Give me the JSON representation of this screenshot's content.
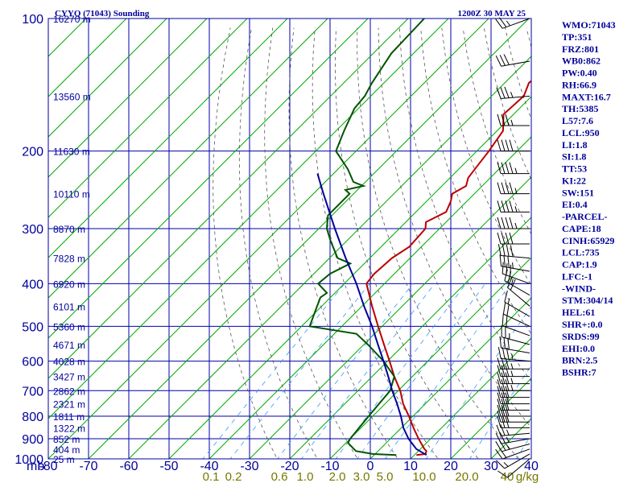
{
  "header": {
    "station": "CYYQ (71043) Sounding",
    "time": "1200Z 30 MAY 25"
  },
  "chart_data": {
    "type": "line",
    "title": "CYYQ (71043) Sounding",
    "subtitle": "1200Z 30 MAY 25",
    "xlabel": "",
    "ylabel": "mb",
    "xlim": [
      -80,
      40
    ],
    "ylim": [
      1000,
      100
    ],
    "y_scale": "log",
    "temperature_ticks": [
      -80,
      -70,
      -60,
      -50,
      -40,
      -30,
      -20,
      -10,
      0,
      10,
      20,
      30,
      40
    ],
    "pressure_ticks": [
      100,
      200,
      300,
      400,
      500,
      600,
      700,
      800,
      900,
      1000
    ],
    "height_labels": [
      {
        "p": 100,
        "text": "16270 m"
      },
      {
        "p": 150,
        "text": "13560 m"
      },
      {
        "p": 200,
        "text": "11630 m"
      },
      {
        "p": 250,
        "text": "10110 m"
      },
      {
        "p": 300,
        "text": "8870 m"
      },
      {
        "p": 350,
        "text": "7828 m"
      },
      {
        "p": 400,
        "text": "6920 m"
      },
      {
        "p": 450,
        "text": "6101 m"
      },
      {
        "p": 500,
        "text": "5360 m"
      },
      {
        "p": 550,
        "text": "4671 m"
      },
      {
        "p": 600,
        "text": "4028 m"
      },
      {
        "p": 650,
        "text": "3427 m"
      },
      {
        "p": 700,
        "text": "2862 m"
      },
      {
        "p": 750,
        "text": "2321 m"
      },
      {
        "p": 800,
        "text": "1811 m"
      },
      {
        "p": 850,
        "text": "1322 m"
      },
      {
        "p": 900,
        "text": "852 m"
      },
      {
        "p": 950,
        "text": "404 m"
      },
      {
        "p": 1000,
        "text": "25 m"
      }
    ],
    "mixing_ratio_labels": [
      "0.1",
      "0.2",
      "0.6",
      "1.0",
      "2.0",
      "3.0",
      "5.0",
      "10.0",
      "20.0",
      "40",
      "g/kg"
    ],
    "mixing_ratio_values": [
      0.1,
      0.2,
      0.6,
      1.0,
      2.0,
      3.0,
      5.0,
      10.0,
      20.0,
      40
    ],
    "series": [
      {
        "color": "#bb0000",
        "points": [
          [
            980,
            10.5
          ],
          [
            975,
            12.5
          ],
          [
            960,
            12.0
          ],
          [
            950,
            11.0
          ],
          [
            900,
            7.0
          ],
          [
            850,
            3.0
          ],
          [
            800,
            -1.0
          ],
          [
            750,
            -5.5
          ],
          [
            700,
            -9.5
          ],
          [
            650,
            -14.5
          ],
          [
            600,
            -19.5
          ],
          [
            550,
            -25.0
          ],
          [
            500,
            -31.0
          ],
          [
            450,
            -37.5
          ],
          [
            400,
            -44.5
          ],
          [
            380,
            -45.0
          ],
          [
            350,
            -44.5
          ],
          [
            330,
            -43.0
          ],
          [
            300,
            -43.5
          ],
          [
            290,
            -45.0
          ],
          [
            275,
            -42.5
          ],
          [
            260,
            -44.0
          ],
          [
            250,
            -45.5
          ],
          [
            240,
            -44.0
          ],
          [
            230,
            -45.5
          ],
          [
            220,
            -46.0
          ],
          [
            200,
            -47.0
          ],
          [
            180,
            -48.5
          ],
          [
            165,
            -52.5
          ],
          [
            150,
            -52.0
          ],
          [
            140,
            -54.0
          ],
          [
            130,
            -53.0
          ],
          [
            120,
            -52.0
          ],
          [
            110,
            -54.5
          ],
          [
            100,
            -56.0
          ]
        ]
      },
      {
        "color": "#005500",
        "points": [
          [
            980,
            5.5
          ],
          [
            975,
            -0.5
          ],
          [
            960,
            -5.5
          ],
          [
            950,
            -6.5
          ],
          [
            920,
            -9.5
          ],
          [
            900,
            -10.0
          ],
          [
            850,
            -10.5
          ],
          [
            800,
            -11.0
          ],
          [
            750,
            -11.5
          ],
          [
            700,
            -12.0
          ],
          [
            650,
            -14.5
          ],
          [
            600,
            -21.0
          ],
          [
            550,
            -29.0
          ],
          [
            520,
            -34.5
          ],
          [
            500,
            -48.0
          ],
          [
            460,
            -50.5
          ],
          [
            430,
            -52.5
          ],
          [
            420,
            -52.0
          ],
          [
            400,
            -56.5
          ],
          [
            380,
            -56.0
          ],
          [
            360,
            -53.5
          ],
          [
            350,
            -58.0
          ],
          [
            320,
            -64.0
          ],
          [
            300,
            -68.0
          ],
          [
            280,
            -71.0
          ],
          [
            250,
            -71.0
          ],
          [
            245,
            -73.0
          ],
          [
            240,
            -69.5
          ],
          [
            235,
            -73.0
          ],
          [
            220,
            -77.5
          ],
          [
            200,
            -85.0
          ],
          [
            180,
            -88.0
          ],
          [
            160,
            -91.0
          ],
          [
            150,
            -91.5
          ],
          [
            140,
            -93.0
          ],
          [
            120,
            -95.5
          ],
          [
            100,
            -96.0
          ]
        ]
      },
      {
        "color": "#000099",
        "points": [
          [
            980,
            13.0
          ],
          [
            950,
            9.0
          ],
          [
            900,
            4.5
          ],
          [
            850,
            0.5
          ],
          [
            800,
            -3.0
          ],
          [
            750,
            -7.0
          ],
          [
            700,
            -11.5
          ],
          [
            650,
            -16.0
          ],
          [
            600,
            -21.0
          ],
          [
            550,
            -26.5
          ],
          [
            500,
            -32.5
          ],
          [
            450,
            -39.5
          ],
          [
            400,
            -47.0
          ],
          [
            350,
            -56.0
          ],
          [
            300,
            -66.0
          ],
          [
            250,
            -77.5
          ],
          [
            225,
            -84.0
          ]
        ]
      }
    ],
    "wind_barbs": {
      "note": "barbs plotted along right edge",
      "levels": [
        {
          "p": 1000,
          "dir": 230,
          "spd": 10
        },
        {
          "p": 975,
          "dir": 240,
          "spd": 15
        },
        {
          "p": 950,
          "dir": 250,
          "spd": 20
        },
        {
          "p": 925,
          "dir": 255,
          "spd": 25
        },
        {
          "p": 900,
          "dir": 260,
          "spd": 25
        },
        {
          "p": 875,
          "dir": 265,
          "spd": 25
        },
        {
          "p": 850,
          "dir": 270,
          "spd": 30
        },
        {
          "p": 825,
          "dir": 270,
          "spd": 30
        },
        {
          "p": 800,
          "dir": 270,
          "spd": 30
        },
        {
          "p": 775,
          "dir": 270,
          "spd": 30
        },
        {
          "p": 750,
          "dir": 270,
          "spd": 30
        },
        {
          "p": 725,
          "dir": 270,
          "spd": 30
        },
        {
          "p": 700,
          "dir": 270,
          "spd": 35
        },
        {
          "p": 675,
          "dir": 270,
          "spd": 35
        },
        {
          "p": 650,
          "dir": 270,
          "spd": 35
        },
        {
          "p": 625,
          "dir": 270,
          "spd": 35
        },
        {
          "p": 600,
          "dir": 275,
          "spd": 35
        },
        {
          "p": 575,
          "dir": 280,
          "spd": 30
        },
        {
          "p": 550,
          "dir": 285,
          "spd": 25
        },
        {
          "p": 525,
          "dir": 290,
          "spd": 20
        },
        {
          "p": 500,
          "dir": 295,
          "spd": 20
        },
        {
          "p": 475,
          "dir": 300,
          "spd": 15
        },
        {
          "p": 450,
          "dir": 310,
          "spd": 20
        },
        {
          "p": 425,
          "dir": 300,
          "spd": 25
        },
        {
          "p": 400,
          "dir": 290,
          "spd": 30
        },
        {
          "p": 375,
          "dir": 280,
          "spd": 35
        },
        {
          "p": 350,
          "dir": 275,
          "spd": 40
        },
        {
          "p": 325,
          "dir": 270,
          "spd": 40
        },
        {
          "p": 300,
          "dir": 270,
          "spd": 45
        },
        {
          "p": 275,
          "dir": 270,
          "spd": 45
        },
        {
          "p": 250,
          "dir": 270,
          "spd": 45
        },
        {
          "p": 225,
          "dir": 270,
          "spd": 45
        },
        {
          "p": 200,
          "dir": 270,
          "spd": 40
        },
        {
          "p": 175,
          "dir": 270,
          "spd": 35
        },
        {
          "p": 150,
          "dir": 265,
          "spd": 35
        },
        {
          "p": 125,
          "dir": 260,
          "spd": 30
        },
        {
          "p": 100,
          "dir": 250,
          "spd": 25
        }
      ]
    }
  },
  "indices": [
    "WMO:71043",
    "TP:351",
    "FRZ:801",
    "WB0:862",
    "PW:0.40",
    "RH:66.9",
    "MAXT:16.7",
    "TH:5385",
    "L57:7.6",
    "LCL:950",
    "LI:1.8",
    "SI:1.8",
    "TT:53",
    "KI:22",
    "SW:151",
    "EI:0.4",
    "-PARCEL-",
    "CAPE:18",
    "CINH:65929",
    "LCL:735",
    "CAP:1.9",
    "LFC:-1",
    "-WIND-",
    "STM:304/14",
    "HEL:61",
    "SHR+:0.0",
    "SRDS:99",
    "EHI:0.0",
    "BRN:2.5",
    "BSHR:7"
  ],
  "colors": {
    "axis": "#00009c",
    "grid": "#0000aa",
    "dry_adiabat": "#00aa00",
    "moist_adiabat": "#000000",
    "mixing_ratio": "#3399ff",
    "mixing_label": "#777700",
    "temperature": "#bb0000",
    "dewpoint": "#005500",
    "parcel": "#000099",
    "barb": "#000000",
    "text": "#000099"
  }
}
